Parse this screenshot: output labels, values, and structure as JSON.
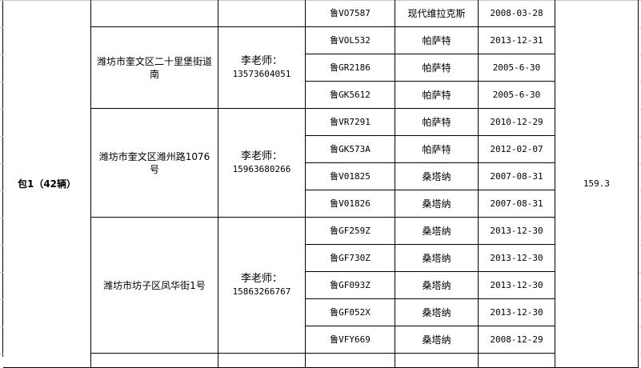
{
  "package": {
    "label": "包1（42辆）",
    "value": "159.3"
  },
  "groups": [
    {
      "address": "",
      "contact": "",
      "phone": ""
    },
    {
      "address": "潍坊市奎文区二十里堡街道南",
      "contact": "李老师：",
      "phone": "13573604051"
    },
    {
      "address": "潍坊市奎文区潍州路1076号",
      "contact": "李老师：",
      "phone": "15963680266"
    },
    {
      "address": "潍坊市坊子区凤华街1号",
      "contact": "李老师：",
      "phone": "15863266767"
    }
  ],
  "rows": [
    {
      "plate": "鲁VO7587",
      "model": "现代维拉克斯",
      "date": "2008-03-28"
    },
    {
      "plate": "鲁VOL532",
      "model": "帕萨特",
      "date": "2013-12-31"
    },
    {
      "plate": "鲁GR2186",
      "model": "帕萨特",
      "date": "2005-6-30"
    },
    {
      "plate": "鲁GK5612",
      "model": "帕萨特",
      "date": "2005-6-30"
    },
    {
      "plate": "鲁VR7291",
      "model": "帕萨特",
      "date": "2010-12-29"
    },
    {
      "plate": "鲁GK573A",
      "model": "帕萨特",
      "date": "2012-02-07"
    },
    {
      "plate": "鲁V01825",
      "model": "桑塔纳",
      "date": "2007-08-31"
    },
    {
      "plate": "鲁V01826",
      "model": "桑塔纳",
      "date": "2007-08-31"
    },
    {
      "plate": "鲁GF259Z",
      "model": "桑塔纳",
      "date": "2013-12-30"
    },
    {
      "plate": "鲁GF730Z",
      "model": "桑塔纳",
      "date": "2013-12-30"
    },
    {
      "plate": "鲁GF093Z",
      "model": "桑塔纳",
      "date": "2013-12-30"
    },
    {
      "plate": "鲁GF052X",
      "model": "桑塔纳",
      "date": "2013-12-30"
    },
    {
      "plate": "鲁VFY669",
      "model": "桑塔纳",
      "date": "2008-12-29"
    }
  ]
}
